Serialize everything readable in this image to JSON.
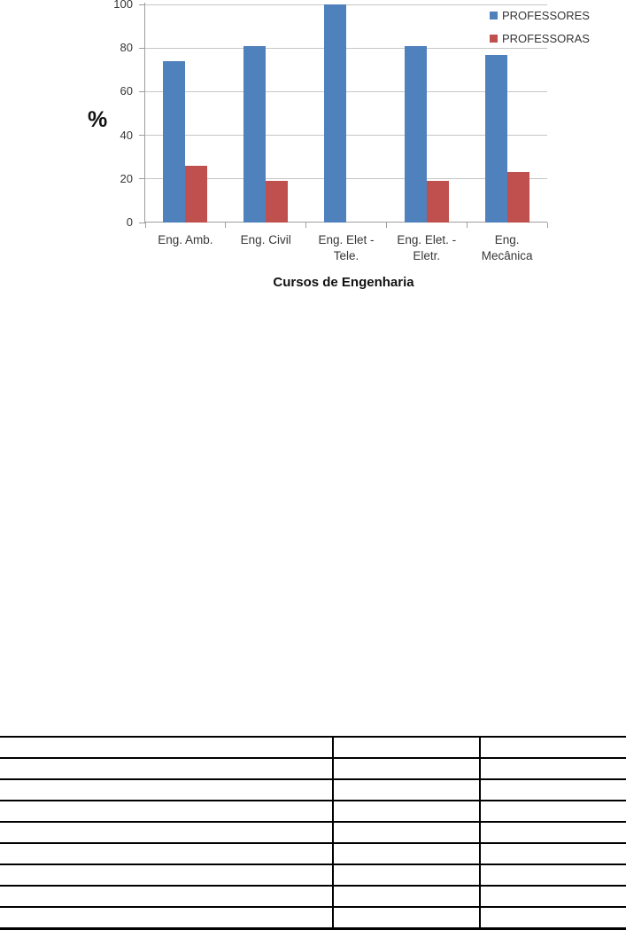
{
  "chart_data": {
    "type": "bar",
    "title": "",
    "xlabel": "Cursos de Engenharia",
    "ylabel": "%",
    "categories": [
      "Eng. Amb.",
      "Eng. Civil",
      "Eng. Elet - Tele.",
      "Eng. Elet. - Eletr.",
      "Eng. Mecânica"
    ],
    "category_label_lines": [
      [
        "Eng. Amb."
      ],
      [
        "Eng. Civil"
      ],
      [
        "Eng. Elet -",
        "Tele."
      ],
      [
        "Eng. Elet. -",
        "Eletr."
      ],
      [
        "Eng.",
        "Mecânica"
      ]
    ],
    "series": [
      {
        "name": "PROFESSORES",
        "color": "#4f81bd",
        "values": [
          74,
          81,
          100,
          81,
          77
        ]
      },
      {
        "name": "PROFESSORAS",
        "color": "#c0504d",
        "values": [
          26,
          19,
          0,
          19,
          23
        ]
      }
    ],
    "ylim": [
      0,
      100
    ],
    "yticks": [
      0,
      20,
      40,
      60,
      80,
      100
    ],
    "grid": true,
    "legend_position": "top-right-overlay",
    "gridline_color": "#c6c6c6",
    "axis_color": "#9e9e9e"
  },
  "table": {
    "rows": 9,
    "columns": 3,
    "cells_empty": true,
    "border_color": "#000000"
  }
}
